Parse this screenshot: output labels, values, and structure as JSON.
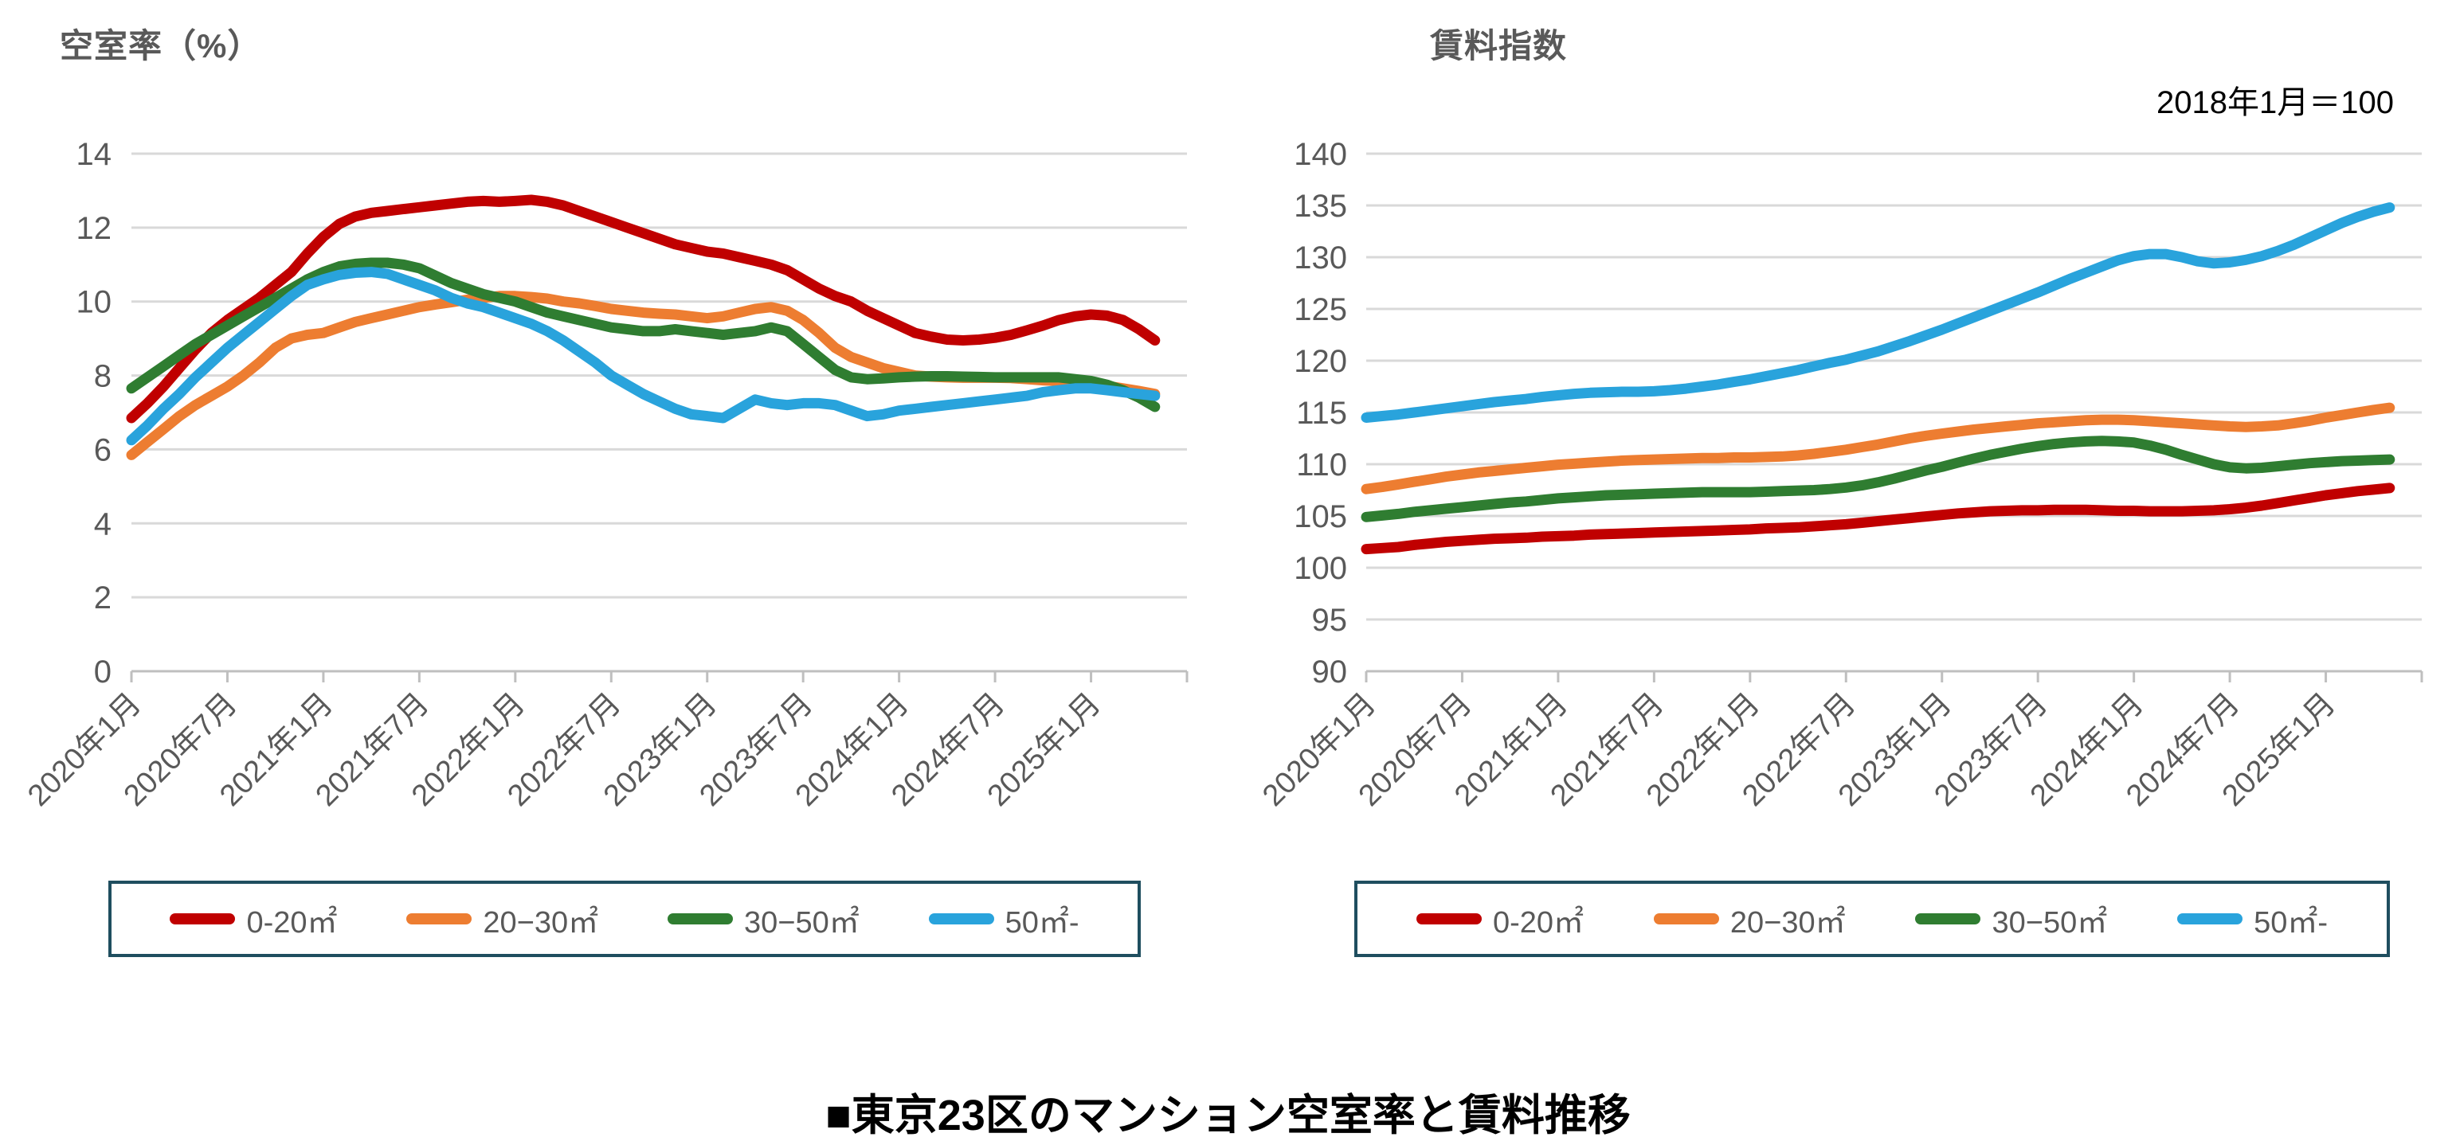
{
  "page": {
    "caption": "■東京23区のマンション空室率と賃料推移"
  },
  "chart_data": [
    {
      "type": "line",
      "title": "空室率（%）",
      "ylabel": "空室率（%）",
      "xlabel": "",
      "ylim": [
        0,
        14
      ],
      "yticks": [
        0,
        2,
        4,
        6,
        8,
        10,
        12,
        14
      ],
      "grid": true,
      "legend_position": "bottom",
      "x_start": "2020年1月",
      "x_end": "2025年5月",
      "x_interval": "monthly",
      "xtick_labels": [
        "2020年1月",
        "2020年7月",
        "2021年1月",
        "2021年7月",
        "2022年1月",
        "2022年7月",
        "2023年1月",
        "2023年7月",
        "2024年1月",
        "2024年7月",
        "2025年1月"
      ],
      "series": [
        {
          "name": "0-20㎡",
          "color": "#c00000",
          "values": [
            6.85,
            7.25,
            7.7,
            8.2,
            8.7,
            9.15,
            9.5,
            9.8,
            10.1,
            10.45,
            10.8,
            11.3,
            11.75,
            12.1,
            12.3,
            12.4,
            12.45,
            12.5,
            12.55,
            12.6,
            12.65,
            12.7,
            12.72,
            12.7,
            12.72,
            12.75,
            12.7,
            12.6,
            12.45,
            12.3,
            12.15,
            12.0,
            11.85,
            11.7,
            11.55,
            11.45,
            11.35,
            11.3,
            11.2,
            11.1,
            11.0,
            10.85,
            10.6,
            10.35,
            10.15,
            10.0,
            9.75,
            9.55,
            9.35,
            9.15,
            9.05,
            8.97,
            8.95,
            8.97,
            9.02,
            9.1,
            9.22,
            9.35,
            9.5,
            9.6,
            9.65,
            9.62,
            9.5,
            9.25,
            8.95
          ]
        },
        {
          "name": "20−30㎡",
          "color": "#ed7d31",
          "values": [
            5.85,
            6.2,
            6.55,
            6.9,
            7.2,
            7.45,
            7.7,
            8.0,
            8.35,
            8.75,
            9.0,
            9.1,
            9.15,
            9.3,
            9.45,
            9.55,
            9.65,
            9.75,
            9.85,
            9.92,
            9.98,
            10.05,
            10.1,
            10.15,
            10.15,
            10.12,
            10.08,
            10.0,
            9.95,
            9.88,
            9.8,
            9.75,
            9.7,
            9.67,
            9.65,
            9.6,
            9.55,
            9.6,
            9.7,
            9.8,
            9.85,
            9.75,
            9.5,
            9.15,
            8.75,
            8.5,
            8.35,
            8.2,
            8.1,
            8.0,
            7.97,
            7.95,
            7.94,
            7.94,
            7.94,
            7.93,
            7.9,
            7.87,
            7.85,
            7.83,
            7.8,
            7.72,
            7.65,
            7.58,
            7.5
          ]
        },
        {
          "name": "30−50㎡",
          "color": "#2f7d31",
          "values": [
            7.65,
            7.95,
            8.25,
            8.55,
            8.85,
            9.1,
            9.35,
            9.6,
            9.85,
            10.1,
            10.35,
            10.6,
            10.8,
            10.95,
            11.02,
            11.05,
            11.05,
            11.0,
            10.9,
            10.7,
            10.5,
            10.35,
            10.2,
            10.1,
            10.0,
            9.85,
            9.7,
            9.6,
            9.5,
            9.4,
            9.3,
            9.25,
            9.2,
            9.2,
            9.25,
            9.2,
            9.15,
            9.1,
            9.15,
            9.2,
            9.3,
            9.2,
            8.85,
            8.5,
            8.15,
            7.95,
            7.9,
            7.92,
            7.95,
            7.97,
            7.98,
            7.98,
            7.97,
            7.96,
            7.95,
            7.95,
            7.95,
            7.95,
            7.95,
            7.9,
            7.85,
            7.75,
            7.6,
            7.4,
            7.15
          ]
        },
        {
          "name": "50㎡-",
          "color": "#29a3dc",
          "values": [
            6.25,
            6.65,
            7.1,
            7.5,
            7.95,
            8.35,
            8.75,
            9.1,
            9.45,
            9.8,
            10.15,
            10.45,
            10.6,
            10.72,
            10.78,
            10.8,
            10.75,
            10.6,
            10.45,
            10.3,
            10.1,
            9.95,
            9.85,
            9.7,
            9.55,
            9.4,
            9.2,
            8.95,
            8.65,
            8.35,
            8.0,
            7.75,
            7.5,
            7.3,
            7.1,
            6.95,
            6.9,
            6.85,
            7.1,
            7.35,
            7.25,
            7.2,
            7.25,
            7.25,
            7.2,
            7.05,
            6.9,
            6.95,
            7.05,
            7.1,
            7.15,
            7.2,
            7.25,
            7.3,
            7.35,
            7.4,
            7.45,
            7.55,
            7.6,
            7.65,
            7.65,
            7.6,
            7.55,
            7.5,
            7.45
          ]
        }
      ]
    },
    {
      "type": "line",
      "title": "賃料指数",
      "subtitle": "2018年1月＝100",
      "ylabel": "賃料指数",
      "xlabel": "",
      "ylim": [
        90,
        140
      ],
      "yticks": [
        90,
        95,
        100,
        105,
        110,
        115,
        120,
        125,
        130,
        135,
        140
      ],
      "grid": true,
      "legend_position": "bottom",
      "x_start": "2020年1月",
      "x_end": "2025年5月",
      "x_interval": "monthly",
      "xtick_labels": [
        "2020年1月",
        "2020年7月",
        "2021年1月",
        "2021年7月",
        "2022年1月",
        "2022年7月",
        "2023年1月",
        "2023年7月",
        "2024年1月",
        "2024年7月",
        "2025年1月"
      ],
      "series": [
        {
          "name": "0-20㎡",
          "color": "#c00000",
          "values": [
            101.8,
            101.9,
            102.0,
            102.2,
            102.35,
            102.5,
            102.6,
            102.7,
            102.8,
            102.85,
            102.9,
            103.0,
            103.05,
            103.1,
            103.2,
            103.25,
            103.3,
            103.35,
            103.4,
            103.45,
            103.5,
            103.55,
            103.6,
            103.65,
            103.7,
            103.8,
            103.85,
            103.9,
            104.0,
            104.1,
            104.2,
            104.35,
            104.5,
            104.65,
            104.8,
            104.95,
            105.1,
            105.25,
            105.35,
            105.45,
            105.5,
            105.55,
            105.55,
            105.6,
            105.6,
            105.6,
            105.55,
            105.5,
            105.5,
            105.45,
            105.45,
            105.45,
            105.5,
            105.55,
            105.65,
            105.8,
            106.0,
            106.25,
            106.5,
            106.75,
            107.0,
            107.2,
            107.4,
            107.55,
            107.7
          ]
        },
        {
          "name": "20−30㎡",
          "color": "#ed7d31",
          "values": [
            107.6,
            107.8,
            108.05,
            108.3,
            108.55,
            108.8,
            109.0,
            109.2,
            109.35,
            109.5,
            109.65,
            109.8,
            109.95,
            110.05,
            110.15,
            110.25,
            110.35,
            110.4,
            110.45,
            110.5,
            110.55,
            110.6,
            110.6,
            110.65,
            110.65,
            110.7,
            110.75,
            110.85,
            111.0,
            111.2,
            111.4,
            111.65,
            111.9,
            112.2,
            112.5,
            112.75,
            112.95,
            113.15,
            113.35,
            113.5,
            113.65,
            113.8,
            113.95,
            114.05,
            114.15,
            114.25,
            114.3,
            114.3,
            114.25,
            114.15,
            114.05,
            113.95,
            113.85,
            113.75,
            113.65,
            113.6,
            113.65,
            113.75,
            113.95,
            114.2,
            114.5,
            114.75,
            115.0,
            115.25,
            115.45
          ]
        },
        {
          "name": "30−50㎡",
          "color": "#2f7d31",
          "values": [
            104.9,
            105.05,
            105.2,
            105.4,
            105.55,
            105.7,
            105.85,
            106.0,
            106.15,
            106.3,
            106.4,
            106.55,
            106.7,
            106.8,
            106.9,
            107.0,
            107.05,
            107.1,
            107.15,
            107.2,
            107.25,
            107.3,
            107.3,
            107.3,
            107.3,
            107.35,
            107.4,
            107.45,
            107.5,
            107.6,
            107.75,
            107.95,
            108.25,
            108.6,
            109.0,
            109.4,
            109.75,
            110.15,
            110.55,
            110.9,
            111.2,
            111.5,
            111.75,
            111.95,
            112.1,
            112.2,
            112.25,
            112.2,
            112.1,
            111.8,
            111.4,
            110.9,
            110.45,
            110.0,
            109.7,
            109.6,
            109.65,
            109.8,
            109.95,
            110.1,
            110.2,
            110.3,
            110.35,
            110.4,
            110.45
          ]
        },
        {
          "name": "50㎡-",
          "color": "#29a3dc",
          "values": [
            114.5,
            114.65,
            114.8,
            115.0,
            115.2,
            115.4,
            115.6,
            115.8,
            116.0,
            116.15,
            116.3,
            116.5,
            116.65,
            116.8,
            116.9,
            116.95,
            117.0,
            117.0,
            117.05,
            117.15,
            117.3,
            117.5,
            117.7,
            117.95,
            118.2,
            118.5,
            118.8,
            119.1,
            119.45,
            119.8,
            120.1,
            120.5,
            120.9,
            121.4,
            121.9,
            122.45,
            123.0,
            123.6,
            124.2,
            124.8,
            125.4,
            126.0,
            126.6,
            127.25,
            127.9,
            128.5,
            129.1,
            129.7,
            130.1,
            130.3,
            130.3,
            130.0,
            129.6,
            129.4,
            129.5,
            129.75,
            130.1,
            130.6,
            131.2,
            131.9,
            132.6,
            133.3,
            133.9,
            134.4,
            134.8
          ]
        }
      ]
    }
  ]
}
